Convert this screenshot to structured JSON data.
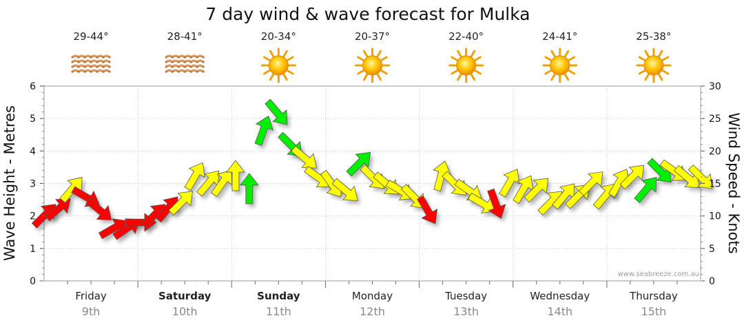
{
  "chart_data": {
    "type": "line",
    "title": "7 day wind & wave forecast for Mulka",
    "ylabel_left": "Wave Height - Metres",
    "ylabel_right": "Wind Speed - Knots",
    "ylim_left": [
      0,
      6
    ],
    "ylim_right": [
      0,
      30
    ],
    "yticks_left": [
      "0",
      "1",
      "2",
      "3",
      "4",
      "5",
      "6"
    ],
    "yticks_right": [
      "0",
      "5",
      "10",
      "15",
      "20",
      "25",
      "30"
    ],
    "watermark": "www.seabreeze.com.au",
    "days": [
      {
        "name": "Friday",
        "date": "9th",
        "temp": "29-44°",
        "icon": "waves-icon",
        "bold": false
      },
      {
        "name": "Saturday",
        "date": "10th",
        "temp": "28-41°",
        "icon": "waves-icon",
        "bold": true
      },
      {
        "name": "Sunday",
        "date": "11th",
        "temp": "20-34°",
        "icon": "sun-icon",
        "bold": true
      },
      {
        "name": "Monday",
        "date": "12th",
        "temp": "20-37°",
        "icon": "sun-icon",
        "bold": false
      },
      {
        "name": "Tuesday",
        "date": "13th",
        "temp": "22-40°",
        "icon": "sun-icon",
        "bold": false
      },
      {
        "name": "Wednesday",
        "date": "14th",
        "temp": "24-41°",
        "icon": "sun-icon",
        "bold": false
      },
      {
        "name": "Thursday",
        "date": "15th",
        "temp": "25-38°",
        "icon": "sun-icon",
        "bold": false
      }
    ],
    "colors": {
      "light": "#ffff00",
      "moderate": "#00ee00",
      "offshore": "#ff0000",
      "arrow_outline": "#555555"
    },
    "wind_series": {
      "name": "Wind speed (knots)",
      "unit": "knots",
      "interval_hours": 3,
      "speed_knots": [
        10,
        11,
        14,
        13,
        11,
        8,
        8,
        9,
        10,
        11,
        12,
        16,
        15,
        15,
        16,
        14,
        23,
        26,
        21,
        19,
        16,
        15,
        14,
        18,
        16,
        15,
        14,
        13,
        11,
        16,
        15,
        14,
        12,
        12,
        15,
        14,
        14,
        12,
        13,
        13,
        15,
        13,
        15,
        16,
        14,
        17,
        17,
        16,
        16
      ],
      "direction_to_deg": [
        45,
        50,
        40,
        120,
        130,
        60,
        55,
        90,
        45,
        40,
        45,
        30,
        40,
        35,
        0,
        0,
        20,
        140,
        135,
        130,
        125,
        145,
        130,
        45,
        135,
        130,
        120,
        135,
        150,
        15,
        135,
        125,
        120,
        160,
        30,
        30,
        45,
        45,
        40,
        45,
        45,
        40,
        30,
        45,
        40,
        135,
        125,
        130,
        135
      ],
      "category": [
        "offshore",
        "offshore",
        "light",
        "offshore",
        "offshore",
        "offshore",
        "offshore",
        "offshore",
        "offshore",
        "offshore",
        "light",
        "light",
        "light",
        "light",
        "light",
        "moderate",
        "moderate",
        "moderate",
        "moderate",
        "light",
        "light",
        "light",
        "light",
        "moderate",
        "light",
        "light",
        "light",
        "light",
        "offshore",
        "light",
        "light",
        "light",
        "light",
        "offshore",
        "light",
        "light",
        "light",
        "light",
        "light",
        "light",
        "light",
        "light",
        "light",
        "light",
        "moderate",
        "moderate",
        "light",
        "light",
        "light"
      ]
    }
  }
}
